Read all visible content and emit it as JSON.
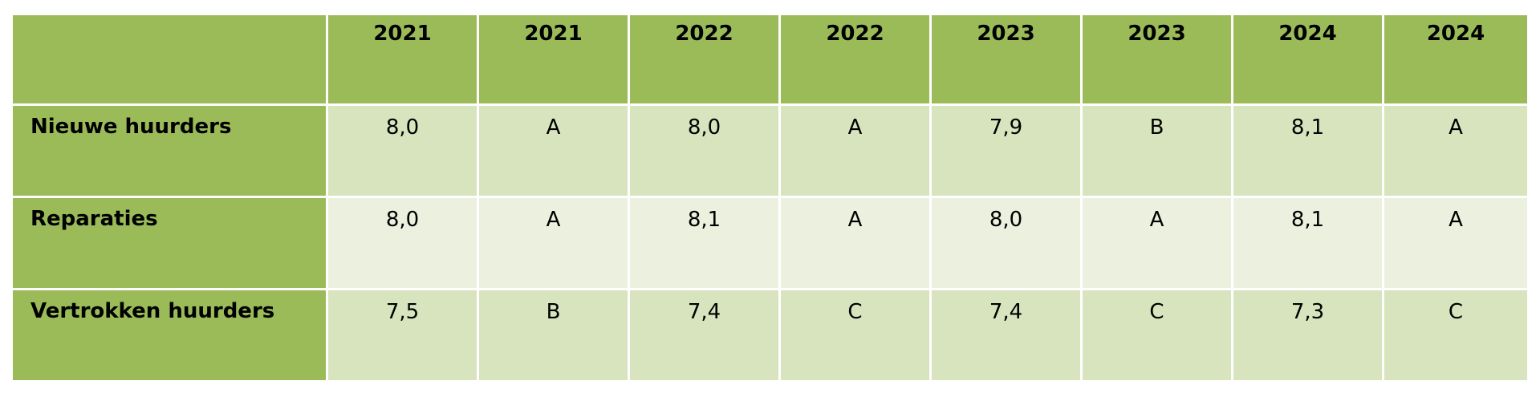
{
  "table": {
    "header": [
      "2021",
      "2021",
      "2022",
      "2022",
      "2023",
      "2023",
      "2024",
      "2024"
    ],
    "rows": [
      {
        "label": "Nieuwe huurders",
        "cells": [
          "8,0",
          "A",
          "8,0",
          "A",
          "7,9",
          "B",
          "8,1",
          "A"
        ]
      },
      {
        "label": "Reparaties",
        "cells": [
          "8,0",
          "A",
          "8,1",
          "A",
          "8,0",
          "A",
          "8,1",
          "A"
        ]
      },
      {
        "label": "Vertrokken huurders",
        "cells": [
          "7,5",
          "B",
          "7,4",
          "C",
          "7,4",
          "C",
          "7,3",
          "C"
        ]
      }
    ]
  }
}
